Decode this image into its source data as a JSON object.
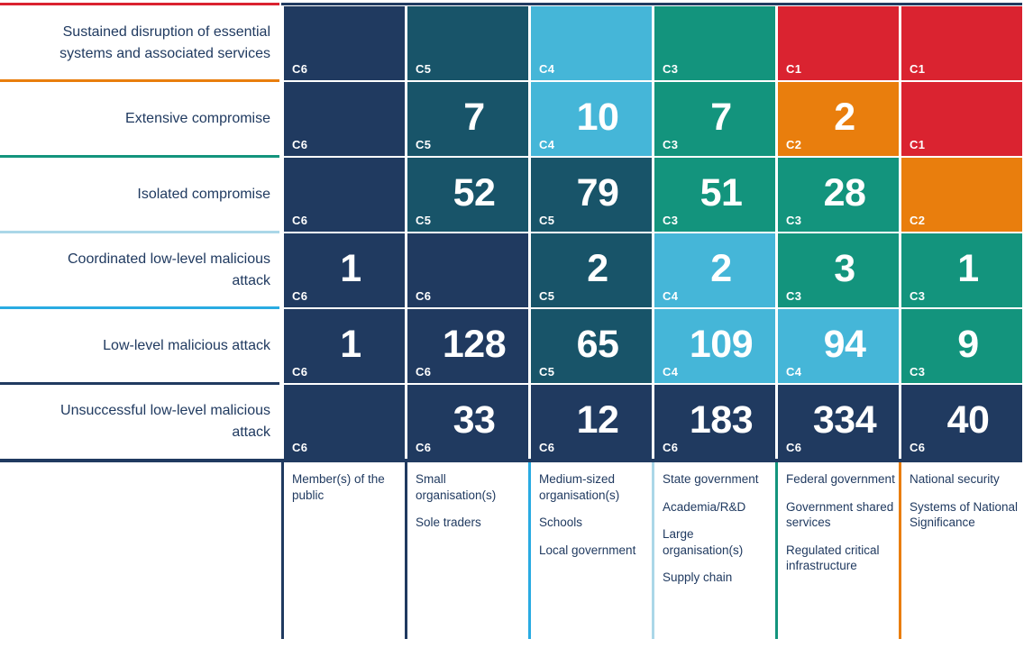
{
  "palette": {
    "C1": "#DA2330",
    "C2": "#E97E0D",
    "C3": "#13947D",
    "C4": "#45B6D8",
    "C5": "#185469",
    "C6": "#203A60",
    "cyan_line": "#29ABE2",
    "pale_blue_line": "#ABD7E8",
    "navy_line": "#203A60",
    "red_line": "#DA2330",
    "orange_line": "#E97E0D",
    "green_line": "#13947D",
    "text": "#203A60",
    "cell_text": "#FFFFFF",
    "background": "#FFFFFF"
  },
  "chart_data": {
    "type": "heatmap",
    "description": "Incident severity matrix: rows are impact levels, columns are affected-entity types, each cell shows incident category (C1-C6) and count where shown",
    "legend_position": "none",
    "grid": "white gaps between cells",
    "row_separator_colors_top_to_bottom": [
      "#DA2330",
      "#E97E0D",
      "#13947D",
      "#ABD7E8",
      "#29ABE2",
      "#203A60",
      "#203A60"
    ],
    "column_separator_colors_left_to_right": [
      "#203A60",
      "#203A60",
      "#29ABE2",
      "#ABD7E8",
      "#13947D",
      "#E97E0D"
    ],
    "rows": [
      {
        "label": "Sustained disruption of essential systems and associated services",
        "cells": [
          {
            "category": "C6",
            "value": null
          },
          {
            "category": "C5",
            "value": null
          },
          {
            "category": "C4",
            "value": null
          },
          {
            "category": "C3",
            "value": null
          },
          {
            "category": "C1",
            "value": null
          },
          {
            "category": "C1",
            "value": null
          }
        ]
      },
      {
        "label": "Extensive compromise",
        "cells": [
          {
            "category": "C6",
            "value": null
          },
          {
            "category": "C5",
            "value": 7
          },
          {
            "category": "C4",
            "value": 10
          },
          {
            "category": "C3",
            "value": 7
          },
          {
            "category": "C2",
            "value": 2
          },
          {
            "category": "C1",
            "value": null
          }
        ]
      },
      {
        "label": "Isolated compromise",
        "cells": [
          {
            "category": "C6",
            "value": null
          },
          {
            "category": "C5",
            "value": 52
          },
          {
            "category": "C5",
            "value": 79
          },
          {
            "category": "C3",
            "value": 51
          },
          {
            "category": "C3",
            "value": 28
          },
          {
            "category": "C2",
            "value": null
          }
        ]
      },
      {
        "label": "Coordinated low-level malicious attack",
        "cells": [
          {
            "category": "C6",
            "value": 1
          },
          {
            "category": "C6",
            "value": null
          },
          {
            "category": "C5",
            "value": 2
          },
          {
            "category": "C4",
            "value": 2
          },
          {
            "category": "C3",
            "value": 3
          },
          {
            "category": "C3",
            "value": 1
          }
        ]
      },
      {
        "label": "Low-level malicious attack",
        "cells": [
          {
            "category": "C6",
            "value": 1
          },
          {
            "category": "C6",
            "value": 128
          },
          {
            "category": "C5",
            "value": 65
          },
          {
            "category": "C4",
            "value": 109
          },
          {
            "category": "C4",
            "value": 94
          },
          {
            "category": "C3",
            "value": 9
          }
        ]
      },
      {
        "label": "Unsuccessful low-level malicious attack",
        "cells": [
          {
            "category": "C6",
            "value": null
          },
          {
            "category": "C6",
            "value": 33
          },
          {
            "category": "C6",
            "value": 12
          },
          {
            "category": "C6",
            "value": 183
          },
          {
            "category": "C6",
            "value": 334
          },
          {
            "category": "C6",
            "value": 40
          }
        ]
      }
    ],
    "columns": [
      {
        "items": [
          "Member(s) of the public"
        ]
      },
      {
        "items": [
          "Small organisation(s)",
          "Sole traders"
        ]
      },
      {
        "items": [
          "Medium-sized organisation(s)",
          "Schools",
          "Local government"
        ]
      },
      {
        "items": [
          "State government",
          "Academia/R&D",
          "Large organisation(s)",
          "Supply chain"
        ]
      },
      {
        "items": [
          "Federal government",
          "Government shared services",
          "Regulated critical infrastructure"
        ]
      },
      {
        "items": [
          "National security",
          "Systems of National Significance"
        ]
      }
    ]
  }
}
